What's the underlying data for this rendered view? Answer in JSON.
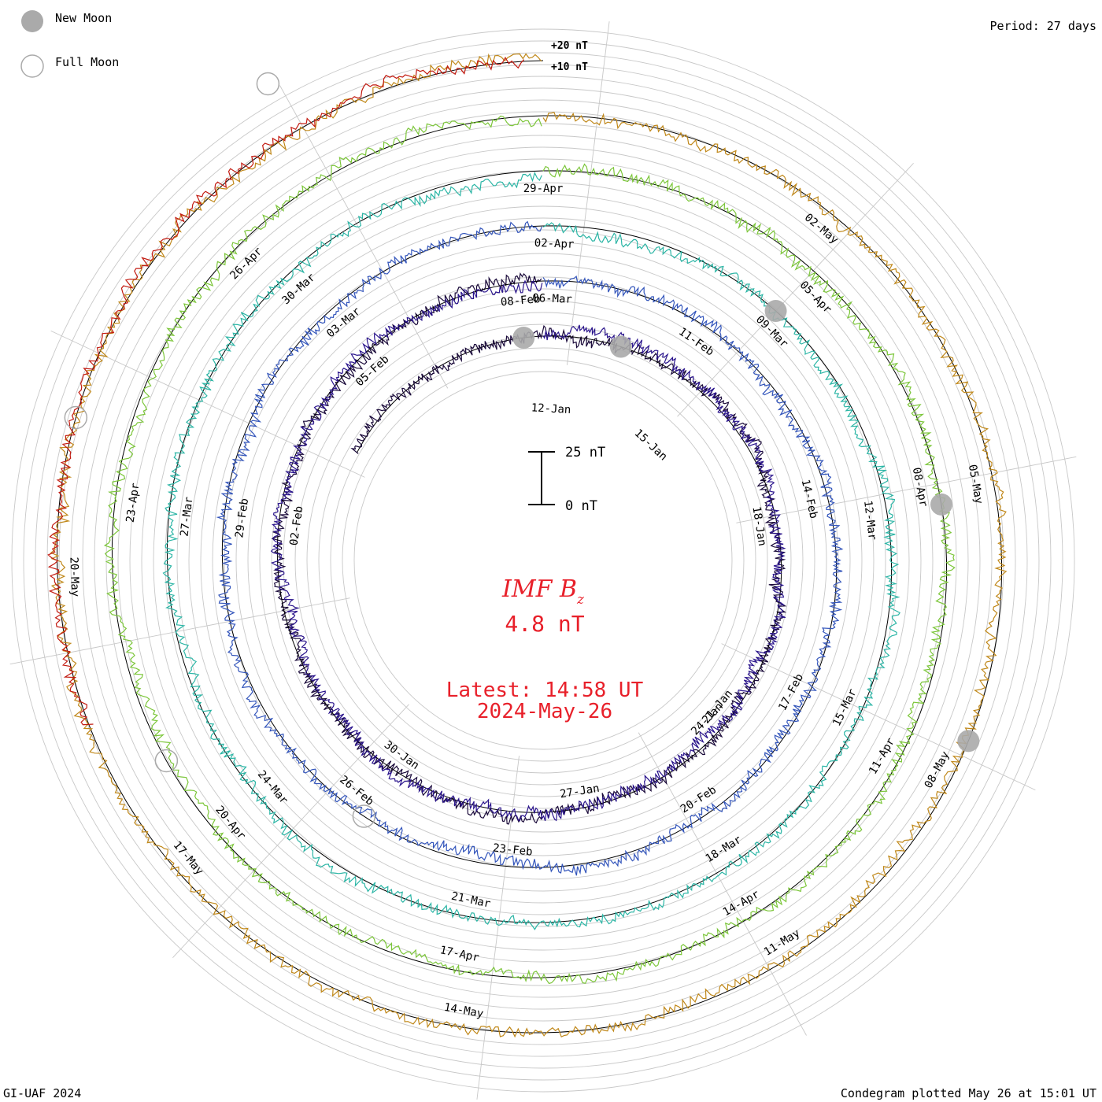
{
  "header": {
    "legend": [
      {
        "label": "New Moon",
        "style": "filled"
      },
      {
        "label": "Full Moon",
        "style": "open"
      }
    ],
    "period": "Period: 27 days",
    "ring_scale_high": "+20 nT",
    "ring_scale_low": "+10 nT"
  },
  "center": {
    "scale_top": "25 nT",
    "scale_bottom": "0 nT",
    "title": "IMF B",
    "title_sub": "z",
    "current_value": "4.8 nT",
    "latest": "Latest: 14:58 UT",
    "latest_date": "2024-May-26"
  },
  "footer": {
    "left": "GI-UAF 2024",
    "right": "Condegram plotted May 26 at 15:01 UT"
  },
  "chart_data": {
    "type": "condegram",
    "title": "IMF Bz",
    "value_unit": "nT",
    "period_days": 27,
    "rotations": [
      {
        "color": "#1a0a3a",
        "labels": [
          {
            "angle": 3,
            "text": "12-Jan"
          },
          {
            "angle": 43,
            "text": "15-Jan"
          }
        ]
      },
      {
        "color": "#2a148c",
        "labels": [
          {
            "angle": 81,
            "text": "18-Jan"
          },
          {
            "angle": 134,
            "text": "24-Jan"
          },
          {
            "angle": 171,
            "text": "27-Jan"
          },
          {
            "angle": 216,
            "text": "30-Jan"
          },
          {
            "angle": 278,
            "text": "02-Feb"
          },
          {
            "angle": 318,
            "text": "05-Feb"
          },
          {
            "angle": 355,
            "text": "08-Feb"
          },
          {
            "angle": 130,
            "text": "21-Jan"
          }
        ]
      },
      {
        "color": "#3355bb",
        "labels": [
          {
            "angle": 35,
            "text": "11-Feb"
          },
          {
            "angle": 77,
            "text": "14-Feb"
          },
          {
            "angle": 118,
            "text": "17-Feb"
          },
          {
            "angle": 147,
            "text": "20-Feb"
          },
          {
            "angle": 186,
            "text": "23-Feb"
          },
          {
            "angle": 219,
            "text": "26-Feb"
          },
          {
            "angle": 278,
            "text": "29-Feb"
          },
          {
            "angle": 320,
            "text": "03-Mar"
          },
          {
            "angle": 2,
            "text": "06-Mar"
          }
        ]
      },
      {
        "color": "#2bb5a5",
        "labels": [
          {
            "angle": 45,
            "text": "09-Mar"
          },
          {
            "angle": 83,
            "text": "12-Mar"
          },
          {
            "angle": 116,
            "text": "15-Mar"
          },
          {
            "angle": 148,
            "text": "18-Mar"
          },
          {
            "angle": 192,
            "text": "21-Mar"
          },
          {
            "angle": 230,
            "text": "24-Mar"
          },
          {
            "angle": 277,
            "text": "27-Mar"
          },
          {
            "angle": 318,
            "text": "30-Mar"
          },
          {
            "angle": 2,
            "text": "02-Apr"
          }
        ]
      },
      {
        "color": "#7cc63a",
        "labels": [
          {
            "angle": 46,
            "text": "05-Apr"
          },
          {
            "angle": 79,
            "text": "08-Apr"
          },
          {
            "angle": 120,
            "text": "11-Apr"
          },
          {
            "angle": 150,
            "text": "14-Apr"
          },
          {
            "angle": 192,
            "text": "17-Apr"
          },
          {
            "angle": 230,
            "text": "20-Apr"
          },
          {
            "angle": 278,
            "text": "23-Apr"
          },
          {
            "angle": 315,
            "text": "26-Apr"
          },
          {
            "angle": 0,
            "text": "29-Apr"
          }
        ]
      },
      {
        "color": "#c0881a",
        "labels": [
          {
            "angle": 40,
            "text": "02-May"
          },
          {
            "angle": 80,
            "text": "05-May"
          },
          {
            "angle": 118,
            "text": "08-May"
          },
          {
            "angle": 148,
            "text": "11-May"
          },
          {
            "angle": 190,
            "text": "14-May"
          },
          {
            "angle": 230,
            "text": "17-May"
          },
          {
            "angle": 268,
            "text": "20-May"
          }
        ]
      },
      {
        "color": "#c21a10",
        "labels": []
      }
    ],
    "moon_markers": [
      {
        "phase": "new",
        "angle": 355,
        "rotation": 0
      },
      {
        "phase": "new",
        "angle": 20,
        "rotation": 1
      },
      {
        "phase": "new",
        "angle": 43,
        "rotation": 3
      },
      {
        "phase": "new",
        "angle": 82,
        "rotation": 4
      },
      {
        "phase": "new",
        "angle": 113,
        "rotation": 5
      },
      {
        "phase": "full",
        "angle": 215,
        "rotation": 2
      },
      {
        "phase": "full",
        "angle": 242,
        "rotation": 4
      },
      {
        "phase": "full",
        "angle": 287,
        "rotation": 5
      },
      {
        "phase": "full",
        "angle": 330,
        "rotation": 6
      }
    ],
    "center_reading": {
      "value": 4.8,
      "unit": "nT",
      "time": "14:58 UT",
      "date": "2024-May-26"
    }
  }
}
